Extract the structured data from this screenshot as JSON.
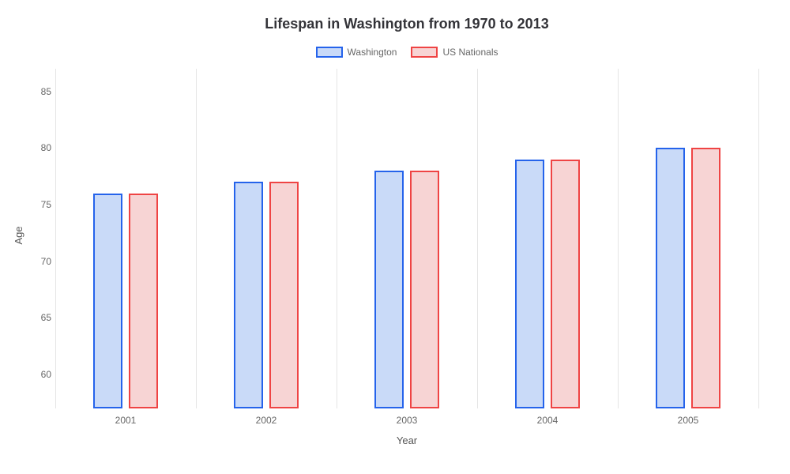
{
  "chart": {
    "type": "bar",
    "title": "Lifespan in Washington from 1970 to 2013",
    "title_fontsize": 18,
    "title_color": "#333338",
    "background_color": "#ffffff",
    "grid_color": "#e5e5e5",
    "xlabel": "Year",
    "ylabel": "Age",
    "label_fontsize": 13,
    "label_color": "#555555",
    "tick_fontsize": 12,
    "tick_color": "#666666",
    "ylim": [
      57,
      87
    ],
    "yticks": [
      60,
      65,
      70,
      75,
      80,
      85
    ],
    "categories": [
      "2001",
      "2002",
      "2003",
      "2004",
      "2005"
    ],
    "series": [
      {
        "name": "Washington",
        "values": [
          76,
          77,
          78,
          79,
          80
        ],
        "border_color": "#2563eb",
        "fill_color": "#c9daf8"
      },
      {
        "name": "US Nationals",
        "values": [
          76,
          77,
          78,
          79,
          80
        ],
        "border_color": "#ef4444",
        "fill_color": "#f7d4d4"
      }
    ],
    "bar_width_pct": 4.2,
    "bar_gap_pct": 0.8,
    "group_spacing_pct": 20,
    "legend_swatch_border_width": 2
  }
}
